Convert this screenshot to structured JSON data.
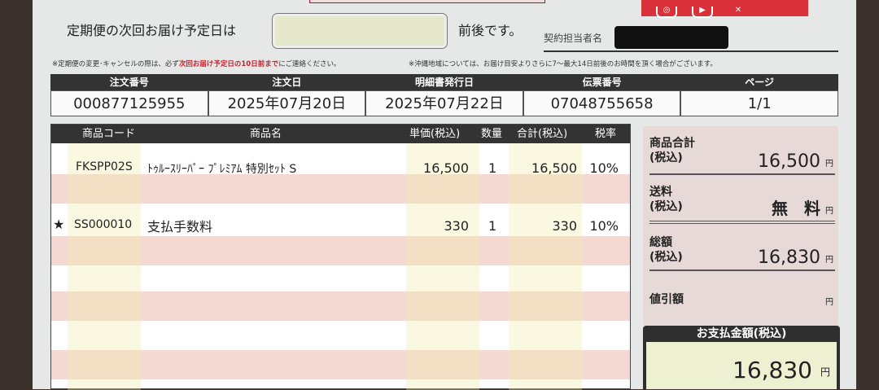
{
  "top": {
    "question_prefix": "定期便の次回お届け予定日は",
    "question_suffix": "前後です。",
    "next_delivery_date": "",
    "contact_label": "契約担当者名"
  },
  "social_icons": [
    "instagram-icon",
    "youtube-icon",
    "x-icon"
  ],
  "notes": {
    "left_pre": "※定期便の変更･キャンセルの際は、必ず",
    "left_bold": "次回お届け予定日の10日前まで",
    "left_post": "にご連絡ください。",
    "right": "※沖縄地域については、お届け目安よりさらに7～最大14日前後のお時間を頂く場合がございます。"
  },
  "order_info": {
    "headers": [
      "注文番号",
      "注文日",
      "明細書発行日",
      "伝票番号",
      "ページ"
    ],
    "values": [
      "000877125955",
      "2025年07月20日",
      "2025年07月22日",
      "07048755658",
      "1/1"
    ]
  },
  "items": {
    "headers": [
      "商品コード",
      "商品名",
      "単価(税込)",
      "数量",
      "合計(税込)",
      "税率"
    ],
    "rows": [
      {
        "mark": "",
        "code": "FKSPP02S",
        "name": "ﾄｩﾙｰｽﾘｰﾊﾟｰ ﾌﾟﾚﾐｱﾑ 特別ｾｯﾄ S",
        "unit_price": "16,500",
        "qty": "1",
        "total": "16,500",
        "rate": "10%"
      },
      {
        "mark": "★",
        "code": "SS000010",
        "name": "支払手数料",
        "unit_price": "330",
        "qty": "1",
        "total": "330",
        "rate": "10%"
      }
    ]
  },
  "summary": {
    "yen": "円",
    "tax_incl": "(税込)",
    "subtotal_label": "商品合計",
    "subtotal": "16,500",
    "shipping_label": "送料",
    "shipping": "無　料",
    "grand_label": "総額",
    "grand": "16,830",
    "discount_label": "値引額",
    "discount": ""
  },
  "payment": {
    "label": "お支払金額(税込)",
    "amount": "16,830",
    "yen": "円"
  },
  "colors": {
    "header_dark": "#333333",
    "band_pink": "#f4d9d2",
    "summary_pink": "#e8d9d9",
    "accent_red": "#c8202c"
  }
}
